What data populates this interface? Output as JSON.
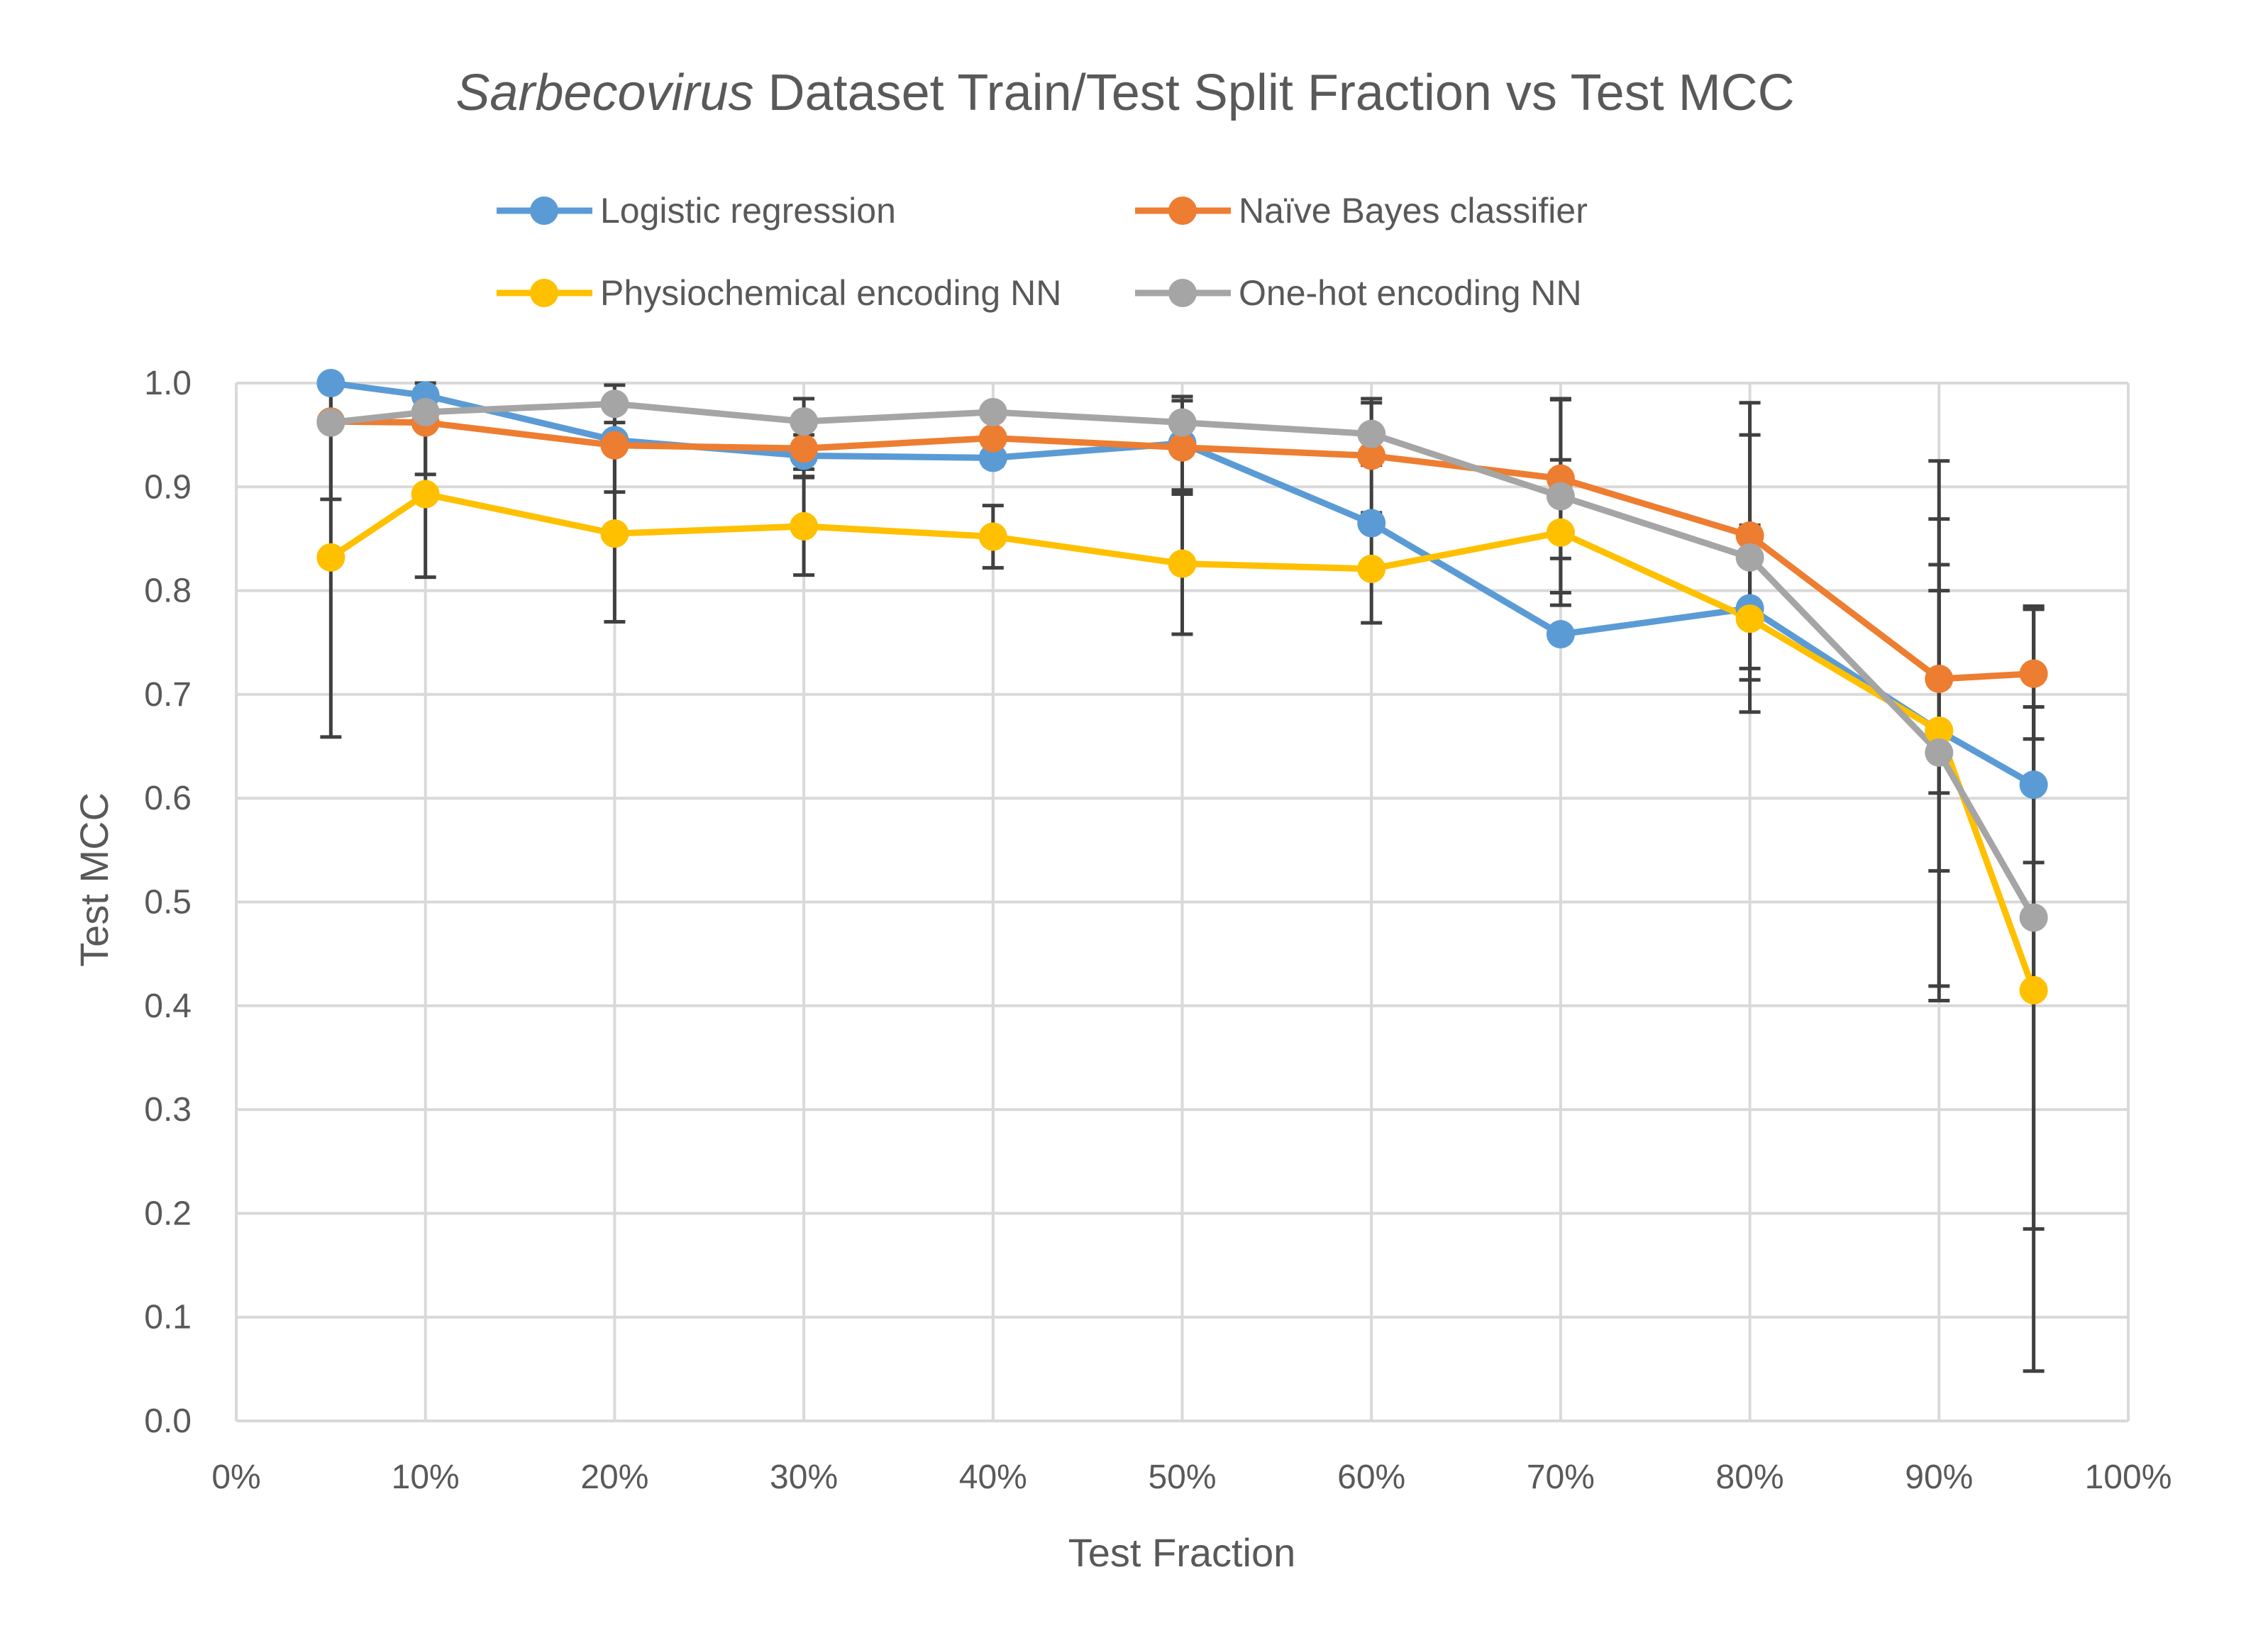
{
  "chart_data": {
    "type": "line",
    "title_italic": "Sarbecovirus",
    "title_rest": " Dataset Train/Test Split Fraction vs Test MCC",
    "xlabel": "Test Fraction",
    "ylabel": "Test MCC",
    "xlim": [
      0,
      100
    ],
    "ylim": [
      0,
      1.0
    ],
    "x_ticks": [
      {
        "v": 0,
        "label": "0%"
      },
      {
        "v": 10,
        "label": "10%"
      },
      {
        "v": 20,
        "label": "20%"
      },
      {
        "v": 30,
        "label": "30%"
      },
      {
        "v": 40,
        "label": "40%"
      },
      {
        "v": 50,
        "label": "50%"
      },
      {
        "v": 60,
        "label": "60%"
      },
      {
        "v": 70,
        "label": "70%"
      },
      {
        "v": 80,
        "label": "80%"
      },
      {
        "v": 90,
        "label": "90%"
      },
      {
        "v": 100,
        "label": "100%"
      }
    ],
    "y_ticks": [
      {
        "v": 0.0,
        "label": "0.0"
      },
      {
        "v": 0.1,
        "label": "0.1"
      },
      {
        "v": 0.2,
        "label": "0.2"
      },
      {
        "v": 0.3,
        "label": "0.3"
      },
      {
        "v": 0.4,
        "label": "0.4"
      },
      {
        "v": 0.5,
        "label": "0.5"
      },
      {
        "v": 0.6,
        "label": "0.6"
      },
      {
        "v": 0.7,
        "label": "0.7"
      },
      {
        "v": 0.8,
        "label": "0.8"
      },
      {
        "v": 0.9,
        "label": "0.9"
      },
      {
        "v": 1.0,
        "label": "1.0"
      }
    ],
    "grid": true,
    "legend_position": "top",
    "x": [
      5,
      10,
      20,
      30,
      40,
      50,
      60,
      70,
      80,
      90,
      95
    ],
    "series": [
      {
        "name": "Logistic regression",
        "color": "#5B9BD5",
        "values": [
          1.0,
          0.988,
          0.945,
          0.93,
          0.928,
          0.942,
          0.865,
          0.758,
          0.783,
          0.665,
          0.613
        ],
        "error": [
          0.0,
          0.0,
          0.0,
          0.02,
          0.0,
          0.045,
          0.0,
          0.0,
          0.0,
          0.135,
          0.075
        ]
      },
      {
        "name": "Naïve Bayes classifier",
        "color": "#ED7D31",
        "values": [
          0.963,
          0.962,
          0.94,
          0.937,
          0.947,
          0.938,
          0.93,
          0.908,
          0.853,
          0.715,
          0.72
        ],
        "error": [
          0.075,
          0.05,
          0.045,
          0.02,
          0.027,
          0.045,
          0.055,
          0.077,
          0.128,
          0.11,
          0.063
        ]
      },
      {
        "name": "Physiochemical encoding NN",
        "color": "#FFC000",
        "values": [
          0.832,
          0.893,
          0.855,
          0.862,
          0.852,
          0.826,
          0.821,
          0.856,
          0.773,
          0.665,
          0.415
        ],
        "error": [
          0.173,
          0.08,
          0.085,
          0.047,
          0.03,
          0.068,
          0.052,
          0.07,
          0.09,
          0.26,
          0.367
        ]
      },
      {
        "name": "One-hot encoding NN",
        "color": "#A5A5A5",
        "values": [
          0.962,
          0.972,
          0.98,
          0.963,
          0.972,
          0.962,
          0.951,
          0.891,
          0.832,
          0.644,
          0.485
        ],
        "error": [
          0.0,
          0.0,
          0.018,
          0.022,
          0.0,
          0.025,
          0.03,
          0.093,
          0.118,
          0.225,
          0.3
        ]
      }
    ]
  }
}
